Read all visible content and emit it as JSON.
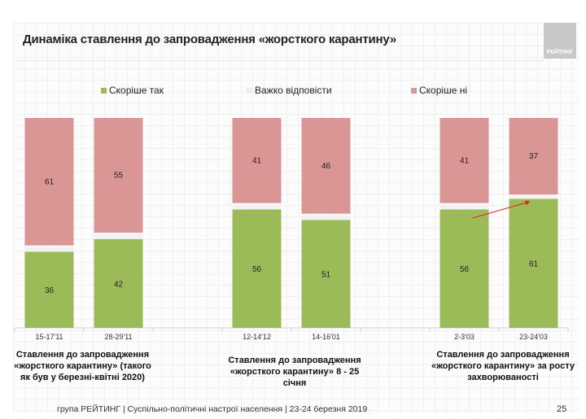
{
  "title": "Динаміка ставлення до запровадження «жорсткого карантину»",
  "logo_text": "РЕЙТИНГ",
  "footer": "група РЕЙТИНГ | Суспільно-політичні настрої населення  | 23-24 березня 2019",
  "page_number": "25",
  "group_labels": [
    "Ставлення до запровадження «жорсткого карантину» (такого як був у березні-квітні 2020)",
    "Ставлення до запровадження «жорсткого карантину» 8 - 25 січня",
    "Ставлення до запровадження «жорсткого карантину» за росту захворюваності"
  ],
  "chart_data": {
    "type": "bar",
    "stacked": true,
    "legend_position": "top",
    "ylim": [
      0,
      100
    ],
    "grid": false,
    "categories": [
      "15-17'11",
      "28-29'11",
      "",
      "12-14'12",
      "14-16'01",
      "",
      "2-3'03",
      "23-24'03"
    ],
    "series": [
      {
        "name": "Скоріше так",
        "color": "#9bbb59",
        "values": [
          36,
          42,
          null,
          56,
          51,
          null,
          56,
          61
        ]
      },
      {
        "name": "Важко відповісти",
        "color": "#f2f2f2",
        "values": [
          3,
          3,
          null,
          3,
          3,
          null,
          3,
          2
        ]
      },
      {
        "name": "Скоріше ні",
        "color": "#d99694",
        "values": [
          61,
          55,
          null,
          41,
          46,
          null,
          41,
          37
        ]
      }
    ],
    "annotations": [
      {
        "type": "arrow",
        "color": "#e02020",
        "from_category": "2-3'03",
        "to_category": "23-24'03"
      }
    ]
  }
}
